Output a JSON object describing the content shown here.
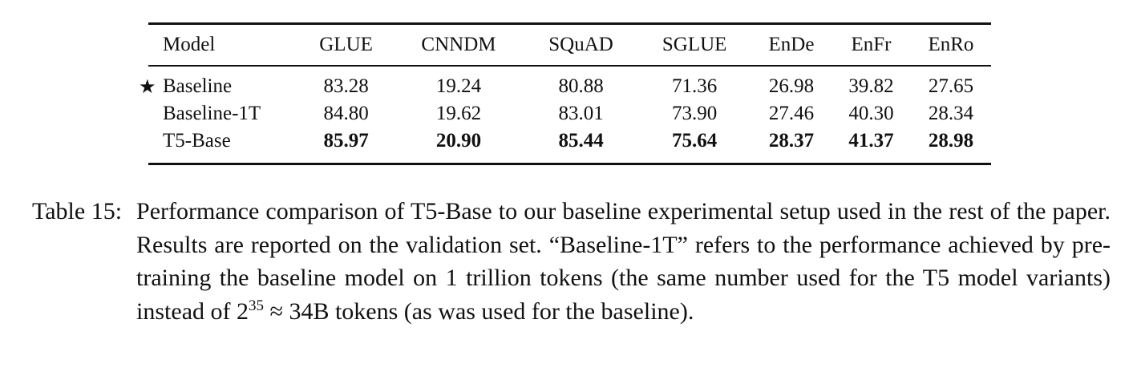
{
  "table": {
    "headers": [
      "Model",
      "GLUE",
      "CNNDM",
      "SQuAD",
      "SGLUE",
      "EnDe",
      "EnFr",
      "EnRo"
    ],
    "rows": [
      {
        "model": "Baseline",
        "star": "★",
        "values": [
          "83.28",
          "19.24",
          "80.88",
          "71.36",
          "26.98",
          "39.82",
          "27.65"
        ]
      },
      {
        "model": "Baseline-1T",
        "star": "",
        "values": [
          "84.80",
          "19.62",
          "83.01",
          "73.90",
          "27.46",
          "40.30",
          "28.34"
        ]
      },
      {
        "model": "T5-Base",
        "star": "",
        "values": [
          "85.97",
          "20.90",
          "85.44",
          "75.64",
          "28.37",
          "41.37",
          "28.98"
        ]
      }
    ]
  },
  "caption": {
    "label": "Table 15:",
    "text_before_exponent": "Performance comparison of T5-Base to our baseline experimental setup used in the rest of the paper. Results are reported on the validation set. “Baseline-1T” refers to the performance achieved by pre-training the baseline model on 1 trillion tokens (the same number used for the T5 model variants) instead of 2",
    "exponent": "35",
    "text_after_exponent": " ≈ 34B tokens (as was used for the baseline)."
  }
}
